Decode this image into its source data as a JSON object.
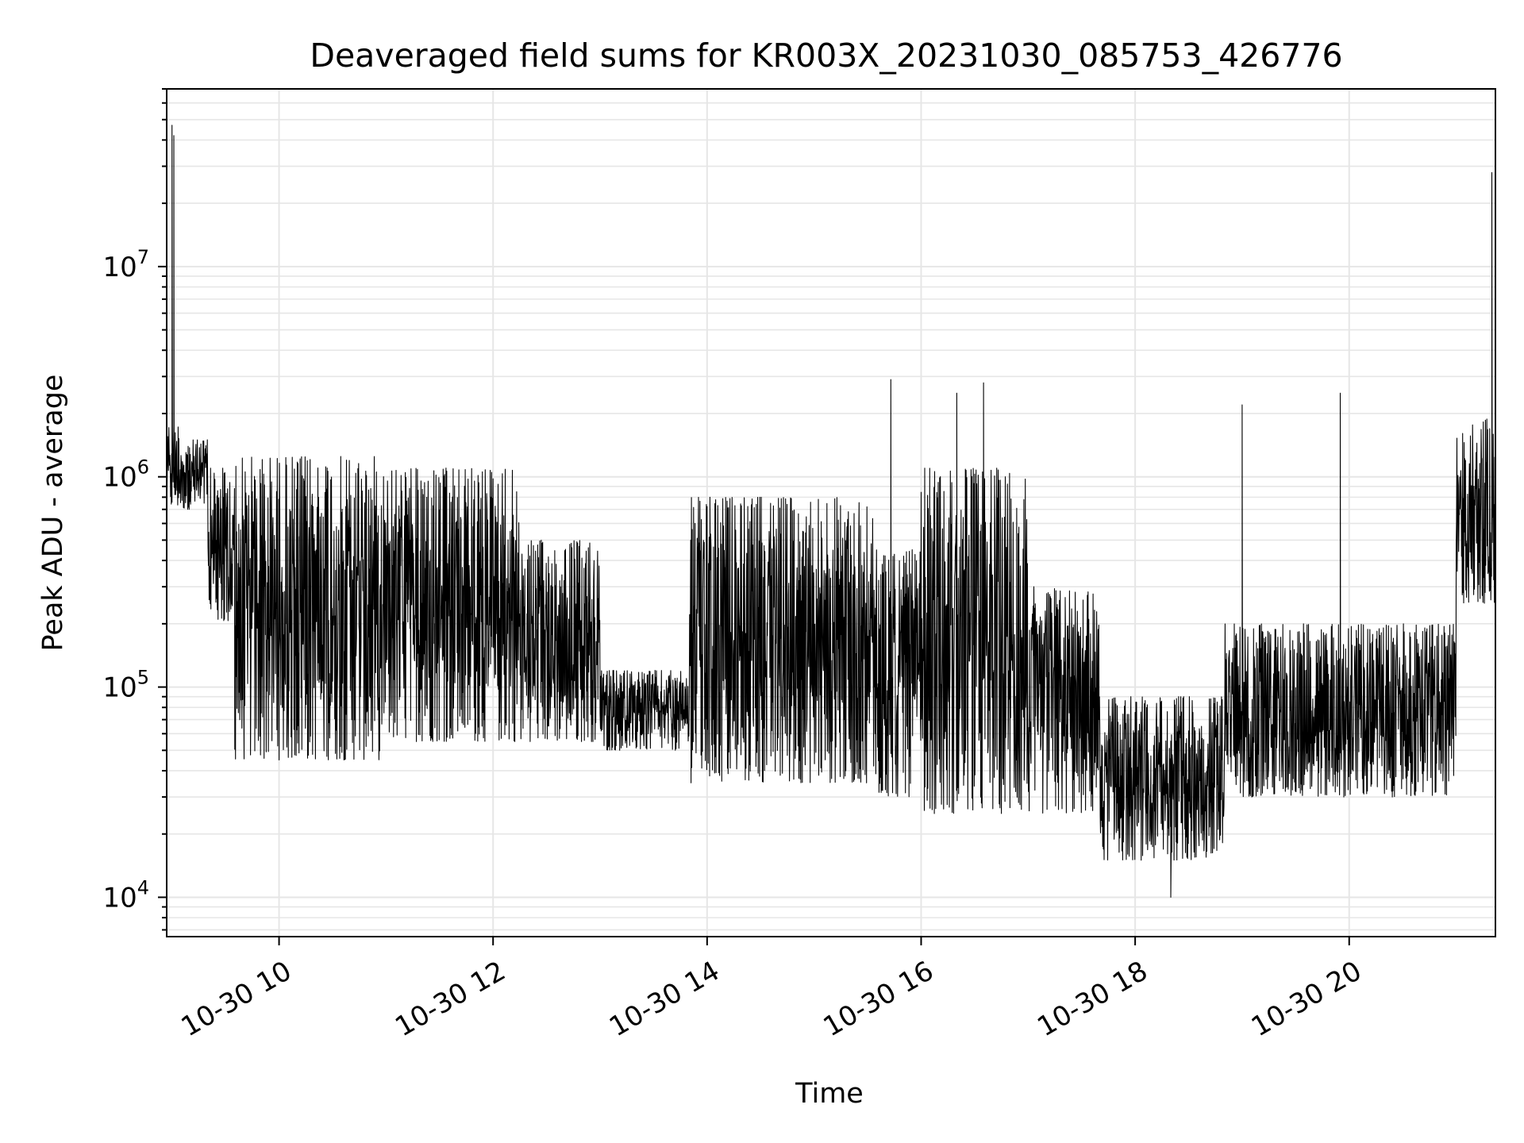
{
  "chart_data": {
    "type": "line",
    "title": "Deaveraged field sums for KR003X_20231030_085753_426776",
    "xlabel": "Time",
    "ylabel": "Peak ADU - average",
    "yscale": "log",
    "ylim": [
      6500,
      70000000
    ],
    "xlim": [
      "2023-10-30 08:57",
      "2023-10-30 21:22"
    ],
    "grid": true,
    "line_color": "#000000",
    "x_ticks": [
      {
        "label": "10-30 10",
        "value": "2023-10-30 10:00"
      },
      {
        "label": "10-30 12",
        "value": "2023-10-30 12:00"
      },
      {
        "label": "10-30 14",
        "value": "2023-10-30 14:00"
      },
      {
        "label": "10-30 16",
        "value": "2023-10-30 16:00"
      },
      {
        "label": "10-30 18",
        "value": "2023-10-30 18:00"
      },
      {
        "label": "10-30 20",
        "value": "2023-10-30 20:00"
      }
    ],
    "y_ticks": [
      {
        "base": "10",
        "exp": "4",
        "value": 10000
      },
      {
        "base": "10",
        "exp": "5",
        "value": 100000
      },
      {
        "base": "10",
        "exp": "6",
        "value": 1000000
      },
      {
        "base": "10",
        "exp": "7",
        "value": 10000000
      }
    ],
    "segments": [
      {
        "start": "2023-10-30 08:57",
        "end": "2023-10-30 09:05",
        "low": 700000,
        "high": 1800000
      },
      {
        "start": "2023-10-30 09:05",
        "end": "2023-10-30 09:20",
        "low": 700000,
        "high": 1500000
      },
      {
        "start": "2023-10-30 09:20",
        "end": "2023-10-30 09:35",
        "low": 200000,
        "high": 1100000
      },
      {
        "start": "2023-10-30 09:35",
        "end": "2023-10-30 11:00",
        "low": 45000,
        "high": 1250000
      },
      {
        "start": "2023-10-30 11:00",
        "end": "2023-10-30 12:15",
        "low": 55000,
        "high": 1100000
      },
      {
        "start": "2023-10-30 12:15",
        "end": "2023-10-30 13:00",
        "low": 55000,
        "high": 500000
      },
      {
        "start": "2023-10-30 13:00",
        "end": "2023-10-30 13:50",
        "low": 50000,
        "high": 120000
      },
      {
        "start": "2023-10-30 13:50",
        "end": "2023-10-30 15:35",
        "low": 35000,
        "high": 800000
      },
      {
        "start": "2023-10-30 15:35",
        "end": "2023-10-30 16:00",
        "low": 30000,
        "high": 450000
      },
      {
        "start": "2023-10-30 16:00",
        "end": "2023-10-30 17:00",
        "low": 25000,
        "high": 1100000
      },
      {
        "start": "2023-10-30 17:00",
        "end": "2023-10-30 17:40",
        "low": 25000,
        "high": 300000
      },
      {
        "start": "2023-10-30 17:40",
        "end": "2023-10-30 18:50",
        "low": 15000,
        "high": 90000
      },
      {
        "start": "2023-10-30 18:50",
        "end": "2023-10-30 21:00",
        "low": 30000,
        "high": 200000
      },
      {
        "start": "2023-10-30 21:00",
        "end": "2023-10-30 21:22",
        "low": 250000,
        "high": 1900000
      }
    ],
    "spikes": [
      {
        "x": "2023-10-30 09:00",
        "y": 47000000
      },
      {
        "x": "2023-10-30 09:01",
        "y": 42000000
      },
      {
        "x": "2023-10-30 15:43",
        "y": 2900000
      },
      {
        "x": "2023-10-30 16:20",
        "y": 2500000
      },
      {
        "x": "2023-10-30 16:35",
        "y": 2800000
      },
      {
        "x": "2023-10-30 19:00",
        "y": 2200000
      },
      {
        "x": "2023-10-30 19:55",
        "y": 2500000
      },
      {
        "x": "2023-10-30 21:20",
        "y": 28000000
      },
      {
        "x": "2023-10-30 18:20",
        "y": 10000
      }
    ]
  }
}
